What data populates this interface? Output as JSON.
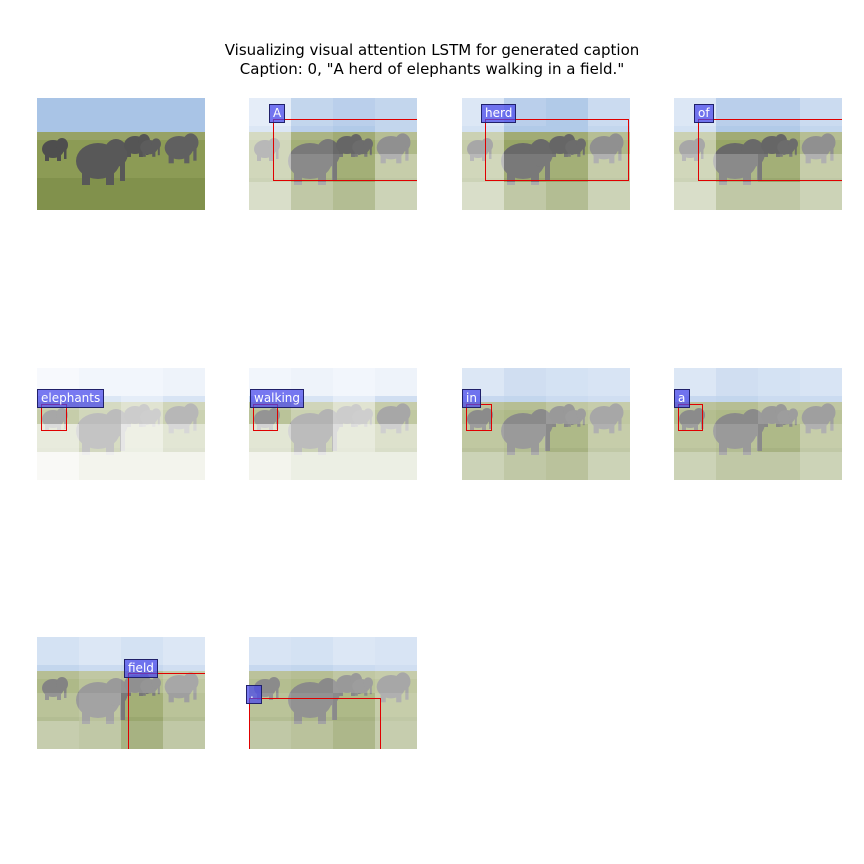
{
  "figure": {
    "title_line1": "Visualizing visual attention LSTM for generated caption",
    "title_line2": "Caption: 0, \"A herd of elephants walking in a field.\""
  },
  "colors": {
    "sky": "#a9c4e6",
    "grass": "#8c9b55",
    "elephant": "#585858",
    "box_edge": "#e00000",
    "label_bg": "#4646eb"
  },
  "panels": [
    {
      "id": "original",
      "word": null
    },
    {
      "id": "w1",
      "word": "A"
    },
    {
      "id": "w2",
      "word": "herd"
    },
    {
      "id": "w3",
      "word": "of"
    },
    {
      "id": "w4",
      "word": "elephants"
    },
    {
      "id": "w5",
      "word": "walking"
    },
    {
      "id": "w6",
      "word": "in"
    },
    {
      "id": "w7",
      "word": "a"
    },
    {
      "id": "w8",
      "word": "field"
    },
    {
      "id": "w9",
      "word": "."
    }
  ]
}
